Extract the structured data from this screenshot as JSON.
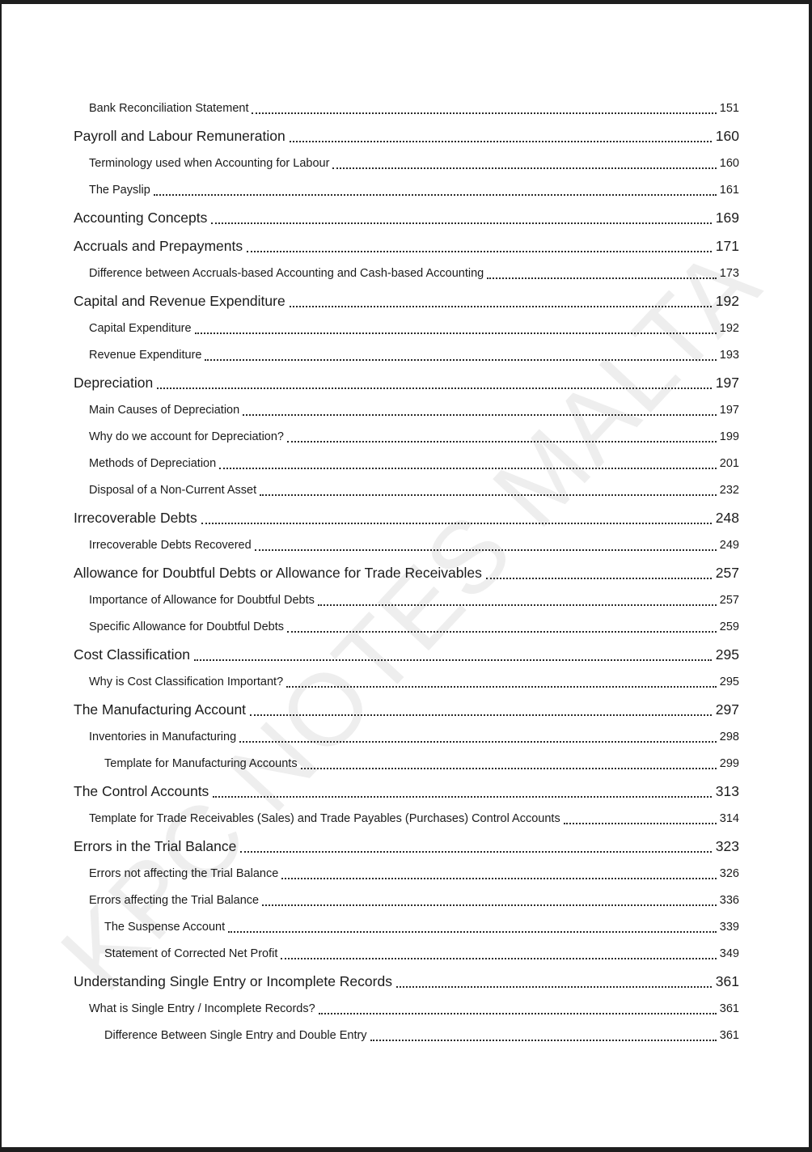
{
  "watermark": "KPC NOTES MALTA",
  "toc": {
    "entries": [
      {
        "level": 2,
        "title": "Bank Reconciliation Statement",
        "page": "151"
      },
      {
        "level": 1,
        "title": "Payroll and Labour Remuneration",
        "page": "160"
      },
      {
        "level": 2,
        "title": "Terminology used when Accounting for Labour",
        "page": "160"
      },
      {
        "level": 2,
        "title": "The Payslip",
        "page": "161"
      },
      {
        "level": 1,
        "title": "Accounting Concepts",
        "page": "169"
      },
      {
        "level": 1,
        "title": "Accruals and Prepayments",
        "page": "171"
      },
      {
        "level": 2,
        "title": "Difference between Accruals-based Accounting and Cash-based Accounting",
        "page": "173"
      },
      {
        "level": 1,
        "title": "Capital and Revenue Expenditure",
        "page": "192"
      },
      {
        "level": 2,
        "title": "Capital Expenditure",
        "page": "192"
      },
      {
        "level": 2,
        "title": "Revenue Expenditure",
        "page": "193"
      },
      {
        "level": 1,
        "title": "Depreciation",
        "page": "197"
      },
      {
        "level": 2,
        "title": "Main Causes of Depreciation",
        "page": "197"
      },
      {
        "level": 2,
        "title": "Why do we account for Depreciation?",
        "page": "199"
      },
      {
        "level": 2,
        "title": "Methods of Depreciation",
        "page": "201"
      },
      {
        "level": 2,
        "title": "Disposal of a Non-Current Asset",
        "page": "232"
      },
      {
        "level": 1,
        "title": "Irrecoverable Debts",
        "page": "248"
      },
      {
        "level": 2,
        "title": "Irrecoverable Debts Recovered",
        "page": "249"
      },
      {
        "level": 1,
        "title": "Allowance for Doubtful Debts or Allowance for Trade Receivables",
        "page": "257"
      },
      {
        "level": 2,
        "title": "Importance of Allowance for Doubtful Debts",
        "page": "257"
      },
      {
        "level": 2,
        "title": "Specific Allowance for Doubtful Debts",
        "page": "259"
      },
      {
        "level": 1,
        "title": "Cost Classification",
        "page": "295"
      },
      {
        "level": 2,
        "title": "Why is Cost Classification Important?",
        "page": "295"
      },
      {
        "level": 1,
        "title": "The Manufacturing Account",
        "page": "297"
      },
      {
        "level": 2,
        "title": "Inventories in Manufacturing",
        "page": "298"
      },
      {
        "level": 3,
        "title": "Template for Manufacturing Accounts",
        "page": "299"
      },
      {
        "level": 1,
        "title": "The Control Accounts",
        "page": "313"
      },
      {
        "level": 2,
        "title": "Template for Trade Receivables (Sales) and Trade Payables (Purchases) Control Accounts",
        "page": "314"
      },
      {
        "level": 1,
        "title": "Errors in the Trial Balance",
        "page": "323"
      },
      {
        "level": 2,
        "title": "Errors not affecting the Trial Balance",
        "page": "326"
      },
      {
        "level": 2,
        "title": "Errors affecting the Trial Balance",
        "page": "336"
      },
      {
        "level": 3,
        "title": "The Suspense Account",
        "page": "339"
      },
      {
        "level": 3,
        "title": "Statement of Corrected Net Profit",
        "page": "349"
      },
      {
        "level": 1,
        "title": "Understanding Single Entry or Incomplete Records",
        "page": "361"
      },
      {
        "level": 2,
        "title": "What is Single Entry / Incomplete Records?",
        "page": "361"
      },
      {
        "level": 3,
        "title": "Difference Between Single Entry and Double Entry",
        "page": "361"
      }
    ]
  }
}
